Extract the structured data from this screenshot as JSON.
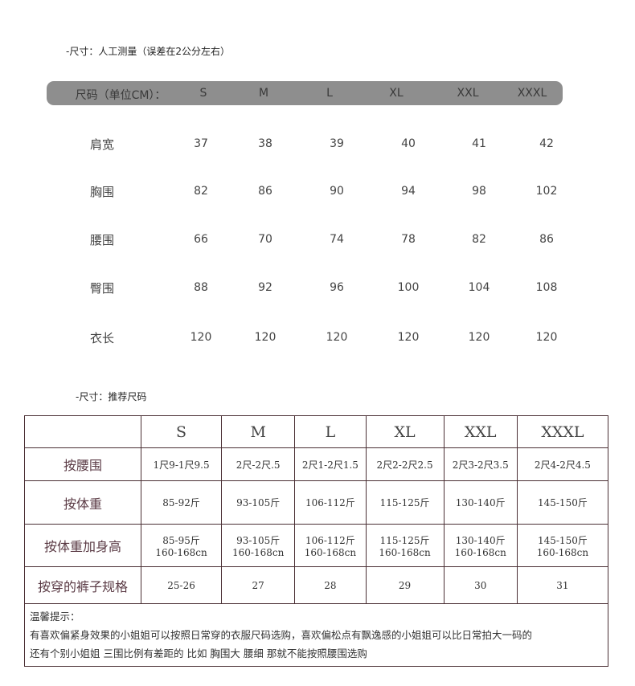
{
  "measured": {
    "title": "-尺寸：人工测量（误差在2公分左右）",
    "header_label": "尺码（单位CM）：",
    "sizes": [
      "S",
      "M",
      "L",
      "XL",
      "XXL",
      "XXXL"
    ],
    "rows": [
      {
        "label": "肩宽",
        "values": [
          "37",
          "38",
          "39",
          "40",
          "41",
          "42"
        ]
      },
      {
        "label": "胸围",
        "values": [
          "82",
          "86",
          "90",
          "94",
          "98",
          "102"
        ]
      },
      {
        "label": "腰围",
        "values": [
          "66",
          "70",
          "74",
          "78",
          "82",
          "86"
        ]
      },
      {
        "label": "臀围",
        "values": [
          "88",
          "92",
          "96",
          "100",
          "104",
          "108"
        ]
      },
      {
        "label": "衣长",
        "values": [
          "120",
          "120",
          "120",
          "120",
          "120",
          "120"
        ]
      }
    ]
  },
  "recommend": {
    "title": "-尺寸：推荐尺码",
    "sizes": [
      "S",
      "M",
      "L",
      "XL",
      "XXL",
      "XXXL"
    ],
    "rows": [
      {
        "label": "按腰围",
        "values": [
          "1尺9-1尺9.5",
          "2尺-2尺.5",
          "2尺1-2尺1.5",
          "2尺2-2尺2.5",
          "2尺3-2尺3.5",
          "2尺4-2尺4.5"
        ]
      },
      {
        "label": "按体重",
        "values": [
          "85-92斤",
          "93-105斤",
          "106-112斤",
          "115-125斤",
          "130-140斤",
          "145-150斤"
        ]
      },
      {
        "label": "按体重加身高",
        "values": [
          "85-95斤",
          "93-105斤",
          "106-112斤",
          "115-125斤",
          "130-140斤",
          "145-150斤"
        ],
        "values2": [
          "160-168cn",
          "160-168cn",
          "160-168cn",
          "160-168cn",
          "160-168cn",
          "160-168cn"
        ]
      },
      {
        "label": "按穿的裤子规格",
        "values": [
          "25-26",
          "27",
          "28",
          "29",
          "30",
          "31"
        ]
      }
    ],
    "note_title": "温馨提示：",
    "note_lines": [
      "有喜欢偏紧身效果的小姐姐可以按照日常穿的衣服尺码选购，喜欢偏松点有飘逸感的小姐姐可以比日常拍大一码的",
      "还有个别小姐姐 三围比例有差距的 比如 胸围大 腰细 那就不能按照腰围选购"
    ]
  }
}
